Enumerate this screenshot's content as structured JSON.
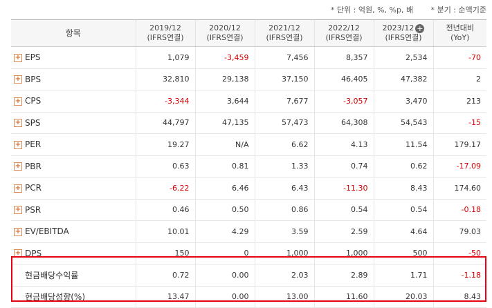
{
  "units": {
    "unit_note": "* 단위 : 억원, %, %p, 배",
    "period_note": "* 분기 : 순액기준"
  },
  "table": {
    "header_item": "항목",
    "columns": [
      {
        "year": "2019/12",
        "basis": "(IFRS연결)"
      },
      {
        "year": "2020/12",
        "basis": "(IFRS연결)"
      },
      {
        "year": "2021/12",
        "basis": "(IFRS연결)"
      },
      {
        "year": "2022/12",
        "basis": "(IFRS연결)"
      },
      {
        "year": "2023/12",
        "basis": "(IFRS연결)",
        "expand_icon": "plus-circle-icon"
      }
    ],
    "yoy_header": {
      "line1": "전년대비",
      "line2": "(YoY)"
    },
    "rows": [
      {
        "label": "EPS",
        "values": [
          "1,079",
          "-3,459",
          "7,456",
          "8,357",
          "2,534"
        ],
        "yoy": "-70"
      },
      {
        "label": "BPS",
        "values": [
          "32,810",
          "29,138",
          "37,150",
          "46,405",
          "47,382"
        ],
        "yoy": "2"
      },
      {
        "label": "CPS",
        "values": [
          "-3,344",
          "3,644",
          "7,677",
          "-3,057",
          "3,470"
        ],
        "yoy": "213"
      },
      {
        "label": "SPS",
        "values": [
          "44,797",
          "47,135",
          "57,473",
          "64,308",
          "54,543"
        ],
        "yoy": "-15"
      },
      {
        "label": "PER",
        "values": [
          "19.27",
          "N/A",
          "6.62",
          "4.13",
          "11.54"
        ],
        "yoy": "179.17"
      },
      {
        "label": "PBR",
        "values": [
          "0.63",
          "0.81",
          "1.33",
          "0.74",
          "0.62"
        ],
        "yoy": "-17.09"
      },
      {
        "label": "PCR",
        "values": [
          "-6.22",
          "6.46",
          "6.43",
          "-11.30",
          "8.43"
        ],
        "yoy": "174.60"
      },
      {
        "label": "PSR",
        "values": [
          "0.46",
          "0.50",
          "0.86",
          "0.54",
          "0.54"
        ],
        "yoy": "-0.18"
      },
      {
        "label": "EV/EBITDA",
        "values": [
          "10.01",
          "4.29",
          "3.59",
          "2.59",
          "4.64"
        ],
        "yoy": "79.03"
      },
      {
        "label": "DPS",
        "values": [
          "150",
          "0",
          "1,000",
          "1,000",
          "500"
        ],
        "yoy": "-50"
      }
    ],
    "highlighted_rows": [
      {
        "label": "현금배당수익률",
        "values": [
          "0.72",
          "0.00",
          "2.03",
          "2.89",
          "1.71"
        ],
        "yoy": "-1.18"
      },
      {
        "label": "현금배당성향(%)",
        "values": [
          "13.47",
          "0.00",
          "13.00",
          "11.60",
          "20.03"
        ],
        "yoy": "8.43"
      }
    ],
    "negative_color": "#d40000",
    "highlight_color": "#e60012"
  }
}
